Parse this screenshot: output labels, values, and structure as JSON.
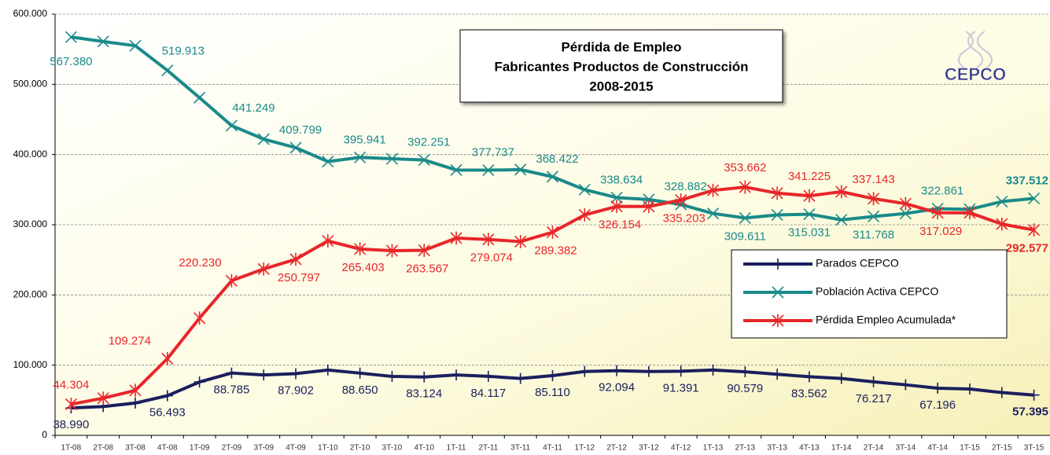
{
  "chart_data": {
    "type": "line",
    "title": [
      "Pérdida de Empleo",
      "Fabricantes Productos de Construcción",
      "2008-2015"
    ],
    "logo": "CEPCO",
    "categories": [
      "1T-08",
      "2T-08",
      "3T-08",
      "4T-08",
      "1T-09",
      "2T-09",
      "3T-09",
      "4T-09",
      "1T-10",
      "2T-10",
      "3T-10",
      "4T-10",
      "1T-11",
      "2T-11",
      "3T-11",
      "4T-11",
      "1T-12",
      "2T-12",
      "3T-12",
      "4T-12",
      "1T-13",
      "2T-13",
      "3T-13",
      "4T-13",
      "1T-14",
      "2T-14",
      "3T-14",
      "4T-14",
      "1T-15",
      "2T-15",
      "3T-15"
    ],
    "ylim": [
      0,
      600000
    ],
    "yticks": [
      0,
      {
        "value": 100000,
        "label": "100.000"
      },
      {
        "value": 200000,
        "label": "200.000"
      },
      {
        "value": 300000,
        "label": "300.000"
      },
      {
        "value": 400000,
        "label": "400.000"
      },
      {
        "value": 500000,
        "label": "500.000"
      },
      {
        "value": 600000,
        "label": "600.000"
      }
    ],
    "grid": true,
    "series": [
      {
        "name": "Parados CEPCO",
        "color": "#1a1f5e",
        "marker": "plus",
        "values": [
          38990,
          41000,
          46000,
          56493,
          76000,
          88785,
          86000,
          87902,
          93000,
          88650,
          84000,
          83124,
          86000,
          84117,
          81000,
          85110,
          91000,
          92094,
          91000,
          91391,
          93000,
          90579,
          87000,
          83562,
          81000,
          76217,
          72000,
          67196,
          66000,
          61000,
          57395
        ],
        "value_labels": [
          "38.990",
          null,
          null,
          "56.493",
          null,
          "88.785",
          null,
          "87.902",
          null,
          "88.650",
          null,
          "83.124",
          null,
          "84.117",
          null,
          "85.110",
          null,
          "92.094",
          null,
          "91.391",
          null,
          "90.579",
          null,
          "83.562",
          null,
          "76.217",
          null,
          "67.196",
          null,
          null,
          "57.395"
        ]
      },
      {
        "name": "Población Activa CEPCO",
        "color": "#1a8a8a",
        "marker": "x",
        "values": [
          567380,
          561000,
          555000,
          519913,
          481000,
          441249,
          422000,
          409799,
          390000,
          395941,
          394000,
          392251,
          378000,
          377737,
          378500,
          368422,
          350000,
          338634,
          336000,
          328882,
          316000,
          309611,
          314000,
          315031,
          307000,
          311768,
          316000,
          322861,
          322000,
          333000,
          337512
        ],
        "value_labels": [
          "567.380",
          null,
          null,
          "519.913",
          null,
          "441.249",
          null,
          "409.799",
          null,
          "395.941",
          null,
          "392.251",
          null,
          "377.737",
          null,
          "368.422",
          null,
          "338.634",
          null,
          "328.882",
          null,
          "309.611",
          null,
          "315.031",
          null,
          "311.768",
          null,
          "322.861",
          null,
          null,
          "337.512"
        ]
      },
      {
        "name": "Pérdida Empleo Acumulada*",
        "color": "#e8262a",
        "marker": "star",
        "values": [
          44304,
          53000,
          64000,
          109274,
          167000,
          220230,
          237000,
          250797,
          277000,
          265403,
          263000,
          263567,
          281000,
          279074,
          276000,
          289382,
          314000,
          326154,
          326000,
          335203,
          349000,
          353662,
          345000,
          341225,
          347000,
          337143,
          330000,
          317029,
          317000,
          301000,
          292577
        ],
        "value_labels": [
          "44.304",
          null,
          null,
          "109.274",
          null,
          "220.230",
          null,
          "250.797",
          null,
          "265.403",
          null,
          "263.567",
          null,
          "279.074",
          null,
          "289.382",
          null,
          "326.154",
          null,
          "335.203",
          null,
          "353.662",
          null,
          "341.225",
          null,
          "337.143",
          null,
          "317.029",
          null,
          null,
          "292.577"
        ]
      }
    ]
  }
}
